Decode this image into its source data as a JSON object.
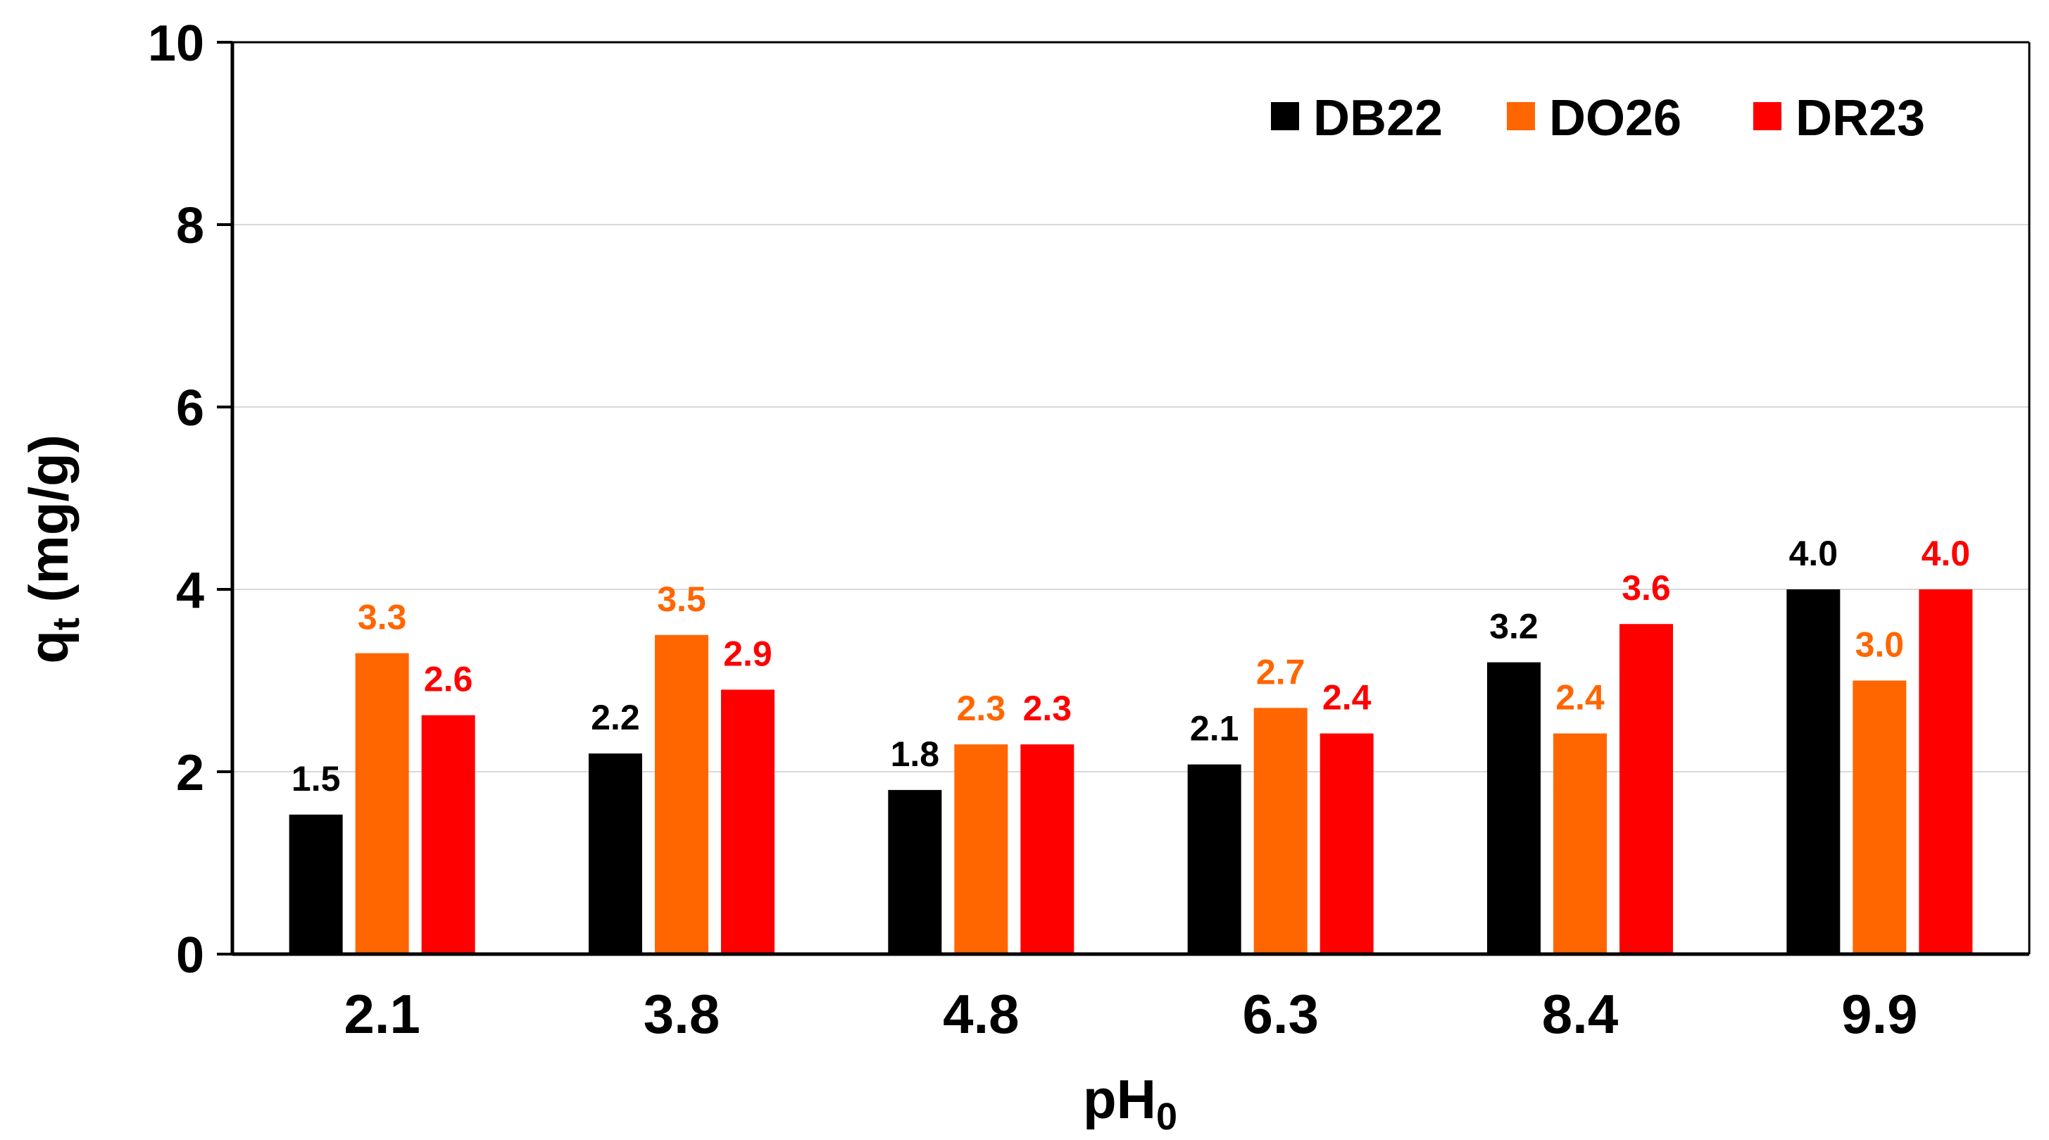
{
  "chart_data": {
    "type": "bar",
    "title": "",
    "xlabel": "pH",
    "xlabel_sub": "0",
    "ylabel": "q",
    "ylabel_sub": "t",
    "ylabel_unit": " (mg/g)",
    "ylim": [
      0,
      10
    ],
    "yticks": [
      "0",
      "2",
      "4",
      "6",
      "8",
      "10"
    ],
    "ytick_values": [
      0,
      2,
      4,
      6,
      8,
      10
    ],
    "grid": true,
    "legend_position": "top-right",
    "categories": [
      "2.1",
      "3.8",
      "4.8",
      "6.3",
      "8.4",
      "9.9"
    ],
    "series": [
      {
        "name": "DB22",
        "color": "#000000",
        "values": [
          1.53,
          2.2,
          1.8,
          2.08,
          3.2,
          4.0
        ],
        "labels": [
          "1.5",
          "2.2",
          "1.8",
          "2.1",
          "3.2",
          "4.0"
        ]
      },
      {
        "name": "DO26",
        "color": "#ff6600",
        "values": [
          3.3,
          3.5,
          2.3,
          2.7,
          2.42,
          3.0
        ],
        "labels": [
          "3.3",
          "3.5",
          "2.3",
          "2.7",
          "2.4",
          "3.0"
        ]
      },
      {
        "name": "DR23",
        "color": "#ff0000",
        "values": [
          2.62,
          2.9,
          2.3,
          2.42,
          3.62,
          4.0
        ],
        "labels": [
          "2.6",
          "2.9",
          "2.3",
          "2.4",
          "3.6",
          "4.0"
        ]
      }
    ]
  }
}
